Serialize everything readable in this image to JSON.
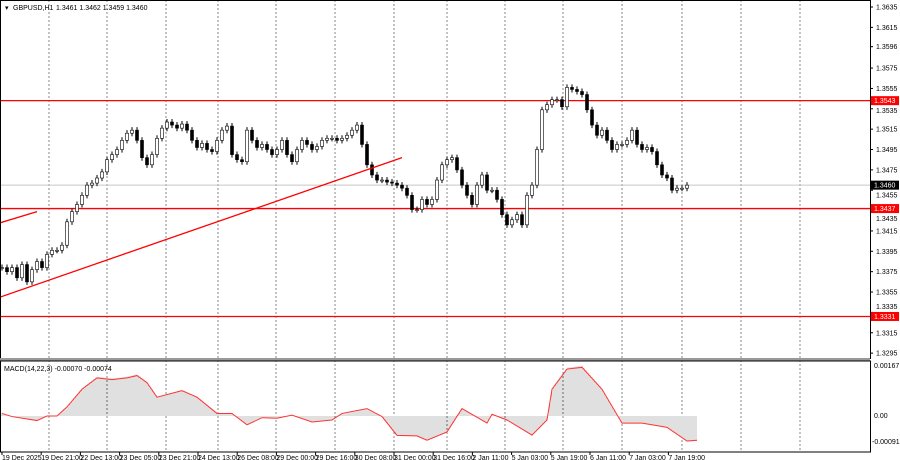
{
  "header": {
    "symbol": "GBPUSD,H1",
    "ohlc": "1.3461 1.3462 1.3459 1.3460"
  },
  "macd": {
    "label": "MACD(14,22,3) -0.00070 -0.00074",
    "axis_labels": [
      "0.00167",
      "0.00",
      "-0.00091"
    ]
  },
  "colors": {
    "level_line": "#ff0000",
    "trend_line": "#ff0000",
    "current_price_tag": "#000000",
    "macd_histogram": "#c0c0c0",
    "macd_signal": "#ff3333",
    "grid": "#555555"
  },
  "chart_data": {
    "type": "candlestick",
    "symbol": "GBPUSD",
    "timeframe": "H1",
    "ylim": [
      1.329,
      1.364
    ],
    "y_ticks": [
      "1.3635",
      "1.3615",
      "1.3596",
      "1.3575",
      "1.3555",
      "1.3535",
      "1.3515",
      "1.3495",
      "1.3475",
      "1.3455",
      "1.3435",
      "1.3415",
      "1.3395",
      "1.3375",
      "1.3355",
      "1.3335",
      "1.3315",
      "1.3295"
    ],
    "x_ticks": [
      "19 Dec 2025",
      "19 Dec 21:00",
      "22 Dec 13:00",
      "23 Dec 05:00",
      "23 Dec 21:00",
      "24 Dec 13:00",
      "26 Dec 08:00",
      "29 Dec 00:00",
      "29 Dec 16:00",
      "30 Dec 08:00",
      "31 Dec 00:00",
      "31 Dec 16:00",
      "2 Jan 11:00",
      "5 Jan 03:00",
      "5 Jan 19:00",
      "6 Jan 11:00",
      "7 Jan 03:00",
      "7 Jan 19:00"
    ],
    "closes": [
      1.3379,
      1.3375,
      1.3379,
      1.3369,
      1.3382,
      1.3365,
      1.3377,
      1.3385,
      1.3379,
      1.3392,
      1.3396,
      1.3396,
      1.3401,
      1.3424,
      1.3434,
      1.3441,
      1.345,
      1.346,
      1.3462,
      1.3467,
      1.3473,
      1.3485,
      1.349,
      1.3495,
      1.3504,
      1.3511,
      1.3514,
      1.3504,
      1.3487,
      1.348,
      1.349,
      1.3506,
      1.3516,
      1.3522,
      1.3519,
      1.3516,
      1.352,
      1.3514,
      1.3504,
      1.3497,
      1.3501,
      1.3495,
      1.3493,
      1.3504,
      1.3514,
      1.3518,
      1.349,
      1.3485,
      1.3483,
      1.3514,
      1.3504,
      1.3497,
      1.35,
      1.3495,
      1.349,
      1.3495,
      1.3504,
      1.349,
      1.3483,
      1.3495,
      1.3504,
      1.35,
      1.3495,
      1.3498,
      1.3504,
      1.3506,
      1.3506,
      1.3504,
      1.3506,
      1.3509,
      1.3514,
      1.3519,
      1.35,
      1.348,
      1.347,
      1.3465,
      1.3465,
      1.3463,
      1.3462,
      1.346,
      1.3457,
      1.345,
      1.3436,
      1.3436,
      1.3446,
      1.3441,
      1.3446,
      1.3465,
      1.348,
      1.3485,
      1.3487,
      1.3475,
      1.346,
      1.345,
      1.3441,
      1.346,
      1.347,
      1.3455,
      1.3455,
      1.3446,
      1.3431,
      1.3421,
      1.3426,
      1.3431,
      1.3421,
      1.345,
      1.346,
      1.3495,
      1.3534,
      1.3539,
      1.3544,
      1.3544,
      1.3537,
      1.3556,
      1.3554,
      1.3552,
      1.3549,
      1.3534,
      1.3519,
      1.3509,
      1.3514,
      1.3504,
      1.3495,
      1.35,
      1.35,
      1.3504,
      1.3514,
      1.35,
      1.3495,
      1.3497,
      1.3493,
      1.348,
      1.347,
      1.3467,
      1.3455,
      1.3457,
      1.3457,
      1.346
    ],
    "current_price": "1.3460",
    "levels": [
      "1.3543",
      "1.3437",
      "1.3331"
    ],
    "trendlines": [
      {
        "from": [
          0,
          1.335
        ],
        "to": [
          80,
          1.3487
        ]
      },
      {
        "from": [
          0,
          1.3423
        ],
        "to": [
          7,
          1.3434
        ]
      }
    ],
    "macd_points": [
      [
        0,
        9e-05
      ],
      [
        2,
        -2e-05
      ],
      [
        7,
        -0.00016
      ],
      [
        9,
        0
      ],
      [
        11,
        0
      ],
      [
        13,
        0.00032
      ],
      [
        16,
        0.00094
      ],
      [
        19,
        0.00134
      ],
      [
        22,
        0.00128
      ],
      [
        25,
        0.00134
      ],
      [
        27,
        0.00142
      ],
      [
        29,
        0.00117
      ],
      [
        31,
        0.00066
      ],
      [
        36,
        0.00089
      ],
      [
        39,
        0.00066
      ],
      [
        43,
        9e-05
      ],
      [
        46,
        9e-05
      ],
      [
        49,
        -0.00031
      ],
      [
        52,
        -6e-05
      ],
      [
        55,
        -8e-05
      ],
      [
        58,
        3e-05
      ],
      [
        62,
        -0.00021
      ],
      [
        66,
        -0.00014
      ],
      [
        68,
        9e-05
      ],
      [
        73,
        0.00026
      ],
      [
        76,
        -2e-05
      ],
      [
        79,
        -0.00068
      ],
      [
        83,
        -0.0007
      ],
      [
        85,
        -0.00085
      ],
      [
        89,
        -0.00056
      ],
      [
        92,
        0.00026
      ],
      [
        97,
        -0.00025
      ],
      [
        98,
        6e-05
      ],
      [
        101,
        -0.00014
      ],
      [
        106,
        -0.00067
      ],
      [
        109,
        -0.00014
      ],
      [
        110,
        0.00094
      ],
      [
        113,
        0.00165
      ],
      [
        116,
        0.00171
      ],
      [
        120,
        0.00094
      ],
      [
        124,
        -0.00025
      ],
      [
        128,
        -0.00025
      ],
      [
        131,
        -0.00034
      ],
      [
        133,
        -0.0004
      ],
      [
        137,
        -0.00088
      ],
      [
        139,
        -0.00085
      ]
    ],
    "macd_range": [
      -0.00091,
      0.00167
    ]
  }
}
